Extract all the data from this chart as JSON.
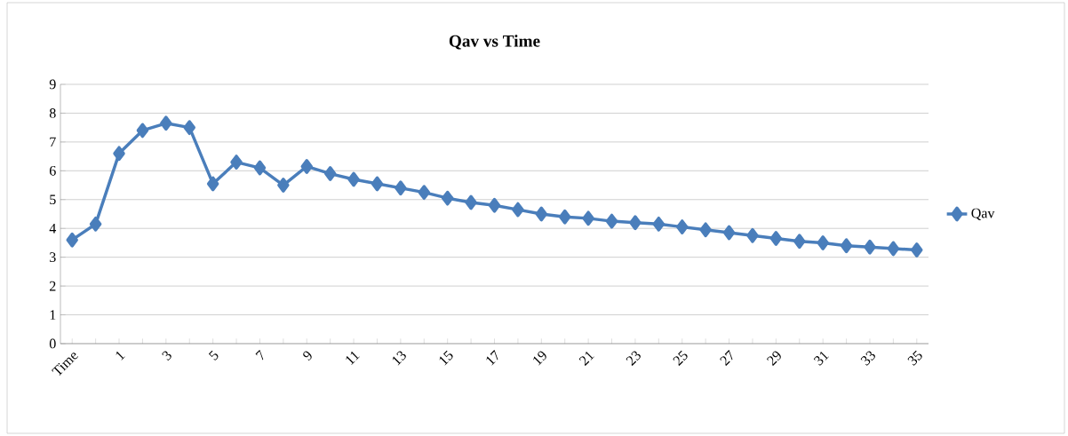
{
  "chart_data": {
    "type": "line",
    "title": "Qav vs Time",
    "categories": [
      "Time",
      null,
      "1",
      null,
      "3",
      null,
      "5",
      null,
      "7",
      null,
      "9",
      null,
      "11",
      null,
      "13",
      null,
      "15",
      null,
      "17",
      null,
      "19",
      null,
      "21",
      null,
      "23",
      null,
      "25",
      null,
      "27",
      null,
      "29",
      null,
      "31",
      null,
      "33",
      null,
      "35"
    ],
    "series": [
      {
        "name": "Qav",
        "color": "#4a7ebb",
        "values": [
          3.6,
          4.15,
          6.6,
          7.4,
          7.65,
          7.5,
          5.55,
          6.3,
          6.1,
          5.5,
          6.15,
          5.9,
          5.7,
          5.55,
          5.4,
          5.25,
          5.05,
          4.9,
          4.8,
          4.65,
          4.5,
          4.4,
          4.35,
          4.25,
          4.2,
          4.15,
          4.05,
          3.95,
          3.85,
          3.75,
          3.65,
          3.55,
          3.5,
          3.4,
          3.35,
          3.3,
          3.25
        ]
      }
    ],
    "ylim": [
      0,
      9
    ],
    "yticks": [
      0,
      1,
      2,
      3,
      4,
      5,
      6,
      7,
      8,
      9
    ],
    "grid": "y",
    "legend": "right",
    "marker": "diamond",
    "line_style": "solid"
  }
}
